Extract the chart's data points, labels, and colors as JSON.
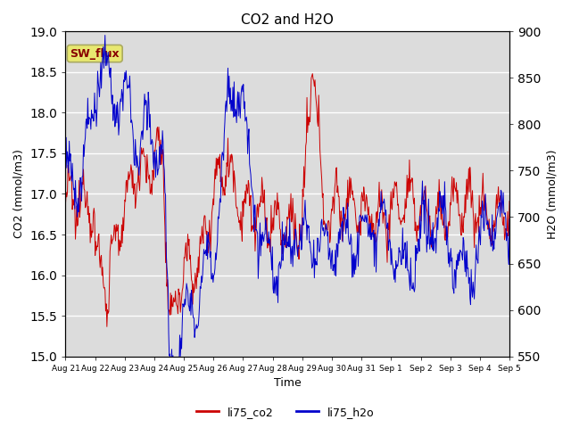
{
  "title": "CO2 and H2O",
  "xlabel": "Time",
  "ylabel_left": "CO2 (mmol/m3)",
  "ylabel_right": "H2O (mmol/m3)",
  "co2_color": "#cc0000",
  "h2o_color": "#0000cc",
  "co2_label": "li75_co2",
  "h2o_label": "li75_h2o",
  "ylim_left": [
    15.0,
    19.0
  ],
  "ylim_right": [
    550,
    900
  ],
  "yticks_left": [
    15.0,
    15.5,
    16.0,
    16.5,
    17.0,
    17.5,
    18.0,
    18.5,
    19.0
  ],
  "yticks_right": [
    550,
    600,
    650,
    700,
    750,
    800,
    850,
    900
  ],
  "bg_color": "#dcdcdc",
  "annotation_text": "SW_flux",
  "annotation_fg": "#880000",
  "annotation_bg": "#e8e870",
  "annotation_border": "#aaaa60",
  "xtick_labels": [
    "Aug 21",
    "Aug 22",
    "Aug 23",
    "Aug 24",
    "Aug 25",
    "Aug 26",
    "Aug 27",
    "Aug 28",
    "Aug 29",
    "Aug 30",
    "Aug 31",
    "Sep 1",
    "Sep 2",
    "Sep 3",
    "Sep 4",
    "Sep 5"
  ],
  "figsize": [
    6.4,
    4.8
  ],
  "dpi": 100
}
